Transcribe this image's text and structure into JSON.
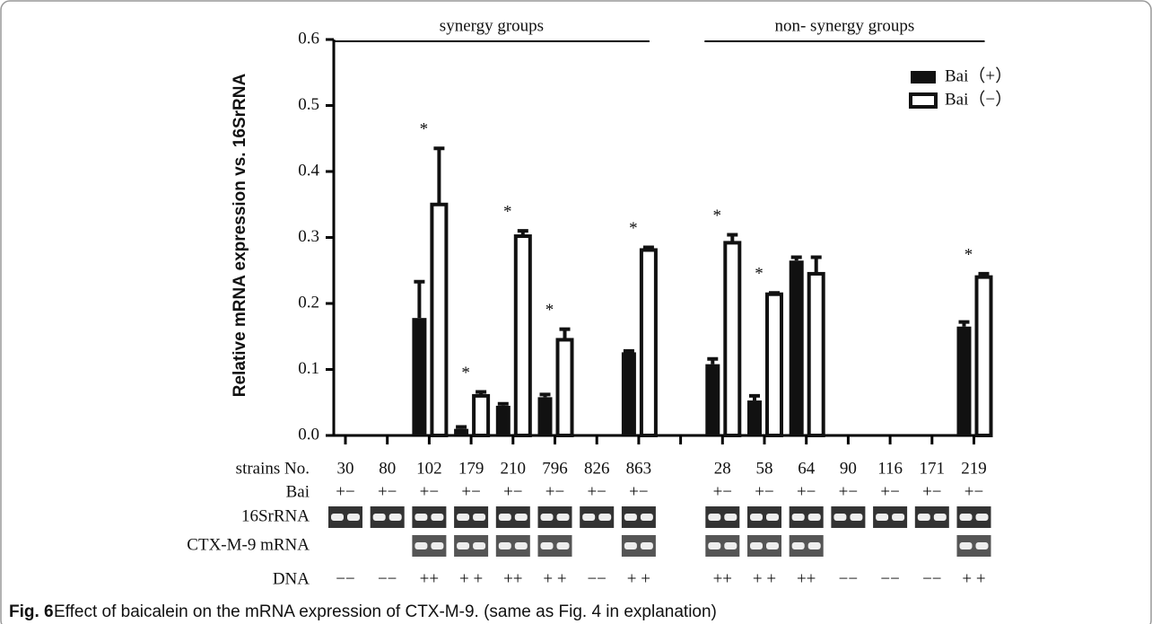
{
  "chart_data": {
    "type": "bar",
    "ylabel": "Relative mRNA expression vs. 16SrRNA",
    "ylim": [
      0,
      0.6
    ],
    "yticks": [
      {
        "value": 0,
        "label": "0.0"
      },
      0.1,
      0.2,
      0.3,
      0.4,
      0.5,
      0.6
    ],
    "groups": [
      "synergy groups",
      "non- synergy groups"
    ],
    "categories": [
      "30",
      "80",
      "102",
      "179",
      "210",
      "796",
      "826",
      "863",
      null,
      "28",
      "58",
      "64",
      "90",
      "116",
      "171",
      "219"
    ],
    "series": [
      {
        "name": "Bai（+）",
        "color": "#111111",
        "values": [
          null,
          null,
          0.178,
          0.01,
          0.045,
          0.058,
          null,
          0.126,
          null,
          0.108,
          0.053,
          0.265,
          null,
          null,
          null,
          0.165
        ],
        "errors": [
          null,
          null,
          0.055,
          0.003,
          0.003,
          0.004,
          null,
          0.002,
          null,
          0.008,
          0.007,
          0.005,
          null,
          null,
          null,
          0.007
        ]
      },
      {
        "name": "Bai（−）",
        "color": "#ffffff",
        "values": [
          null,
          null,
          0.35,
          0.06,
          0.302,
          0.145,
          null,
          0.281,
          null,
          0.292,
          0.214,
          0.245,
          null,
          null,
          null,
          0.24
        ],
        "errors": [
          null,
          null,
          0.085,
          0.006,
          0.008,
          0.016,
          null,
          0.004,
          null,
          0.012,
          0.002,
          0.025,
          null,
          null,
          null,
          0.005
        ]
      }
    ],
    "significance": [
      null,
      null,
      "*",
      "*",
      "*",
      "*",
      null,
      "*",
      null,
      "*",
      "*",
      null,
      null,
      null,
      null,
      "*"
    ],
    "legend": "top-right",
    "row_labels": [
      "strains No.",
      "Bai",
      "16SrRNA",
      "CTX-M-9 mRNA",
      "DNA"
    ],
    "bai_signs": [
      "+−",
      "+−",
      "+−",
      "+−",
      "+−",
      "+−",
      "+−",
      "+−",
      null,
      "+−",
      "+−",
      "+−",
      "+−",
      "+−",
      "+−",
      "+−"
    ],
    "dna": [
      "−−",
      "−−",
      "++",
      "+ +",
      "++",
      "+ +",
      "−−",
      "+ +",
      null,
      "++",
      "+ +",
      "++",
      "−−",
      "−−",
      "−−",
      "+ +"
    ],
    "caption": {
      "label": "Fig. 6",
      "text": "Effect of baicalein on the mRNA expression of CTX-M-9. (same as Fig. 4 in explanation)"
    }
  }
}
